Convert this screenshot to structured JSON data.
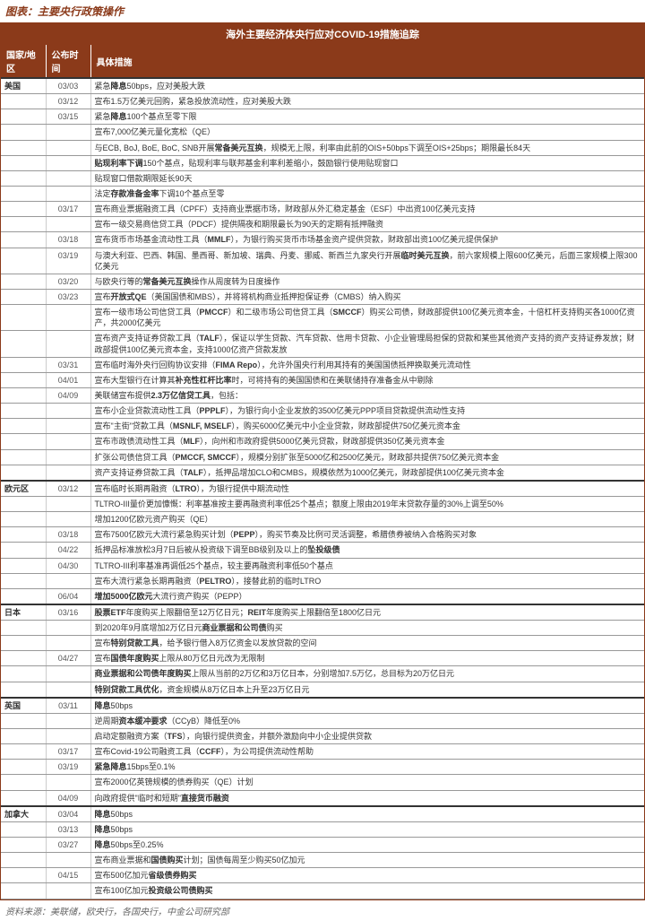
{
  "colors": {
    "primary": "#8b3a1a",
    "text": "#333333",
    "border": "#999999",
    "bg": "#ffffff"
  },
  "chart_title": "图表：主要央行政策操作",
  "table_title": "海外主要经济体央行应对COVID-19措施追踪",
  "columns": [
    "国家/地区",
    "公布时间",
    "具体措施"
  ],
  "rows": [
    {
      "region": "美国",
      "date": "03/03",
      "m": "紧急<b>降息</b>50bps，应对美股大跌",
      "sep": true
    },
    {
      "region": "",
      "date": "03/12",
      "m": "宣布1.5万亿美元回购，紧急投放流动性，应对美股大跌"
    },
    {
      "region": "",
      "date": "03/15",
      "m": "紧急<b>降息</b>100个基点至零下限"
    },
    {
      "region": "",
      "date": "",
      "m": "宣布7,000亿美元量化宽松（QE）"
    },
    {
      "region": "",
      "date": "",
      "m": "与ECB, BoJ, BoE, BoC, SNB开展<b>常备美元互换</b>，规模无上限，利率由此前的OIS+50bps下调至OIS+25bps；期限最长84天"
    },
    {
      "region": "",
      "date": "",
      "m": "<b>贴现利率下调</b>150个基点，贴现利率与联邦基金利率利差缩小，鼓励银行使用贴现窗口"
    },
    {
      "region": "",
      "date": "",
      "m": "贴现窗口借款期限延长90天"
    },
    {
      "region": "",
      "date": "",
      "m": "法定<b>存款准备金率</b>下调10个基点至零"
    },
    {
      "region": "",
      "date": "03/17",
      "m": "宣布商业票据融资工具（CPFF）支持商业票据市场，财政部从外汇稳定基金（ESF）中出资100亿美元支持"
    },
    {
      "region": "",
      "date": "",
      "m": "宣布一级交易商信贷工具（PDCF）提供隔夜和期限最长为90天的定期有抵押融资"
    },
    {
      "region": "",
      "date": "03/18",
      "m": "宣布货币市场基金流动性工具（<b>MMLF</b>），为银行购买货币市场基金资产提供贷款，财政部出资100亿美元提供保护"
    },
    {
      "region": "",
      "date": "03/19",
      "m": "与澳大利亚、巴西、韩国、墨西哥、新加坡、瑞典、丹麦、挪威、新西兰九家央行开展<b>临时美元互换</b>，前六家规模上限600亿美元，后面三家规模上限300亿美元"
    },
    {
      "region": "",
      "date": "03/20",
      "m": "与欧央行等的<b>常备美元互换</b>操作从周度转为日度操作"
    },
    {
      "region": "",
      "date": "03/23",
      "m": "宣布<b>开放式QE</b>（美国国债和MBS），并将将机构商业抵押担保证券（CMBS）纳入购买"
    },
    {
      "region": "",
      "date": "",
      "m": "宣布一级市场公司信贷工具（<b>PMCCF</b>）和二级市场公司信贷工具（<b>SMCCF</b>）购买公司债，财政部提供100亿美元资本金，十倍杠杆支持购买各1000亿资产，共2000亿美元"
    },
    {
      "region": "",
      "date": "",
      "m": "宣布资产支持证券贷款工具（<b>TALF</b>），保证以学生贷款、汽车贷款、信用卡贷款、小企业管理局担保的贷款和某些其他资产支持的资产支持证券发放；财政部提供100亿美元资本金，支持1000亿资产贷款发放"
    },
    {
      "region": "",
      "date": "03/31",
      "m": "宣布临时海外央行回购协议安排（<b>FIMA Repo</b>），允许外国央行利用其持有的美国国债抵押换取美元流动性"
    },
    {
      "region": "",
      "date": "04/01",
      "m": "宣布大型银行在计算其<b>补充性杠杆比率</b>时，可将持有的美国国债和在美联储持存准备金从中剔除"
    },
    {
      "region": "",
      "date": "04/09",
      "m": "美联储宣布提供<b>2.3万亿信贷工具</b>，包括："
    },
    {
      "region": "",
      "date": "",
      "m": "宣布小企业贷款流动性工具（<b>PPPLF</b>），为银行向小企业发放的3500亿美元PPP项目贷款提供流动性支持"
    },
    {
      "region": "",
      "date": "",
      "m": "宣布\"主街\"贷款工具（<b>MSNLF, MSELF</b>），购买6000亿美元中小企业贷款，财政部提供750亿美元资本金"
    },
    {
      "region": "",
      "date": "",
      "m": "宣布市政债流动性工具（<b>MLF</b>），向州和市政府提供5000亿美元贷款，财政部提供350亿美元资本金"
    },
    {
      "region": "",
      "date": "",
      "m": "扩张公司债信贷工具（<b>PMCCF, SMCCF</b>），规模分别扩张至5000亿和2500亿美元，财政部共提供750亿美元资本金"
    },
    {
      "region": "",
      "date": "",
      "m": "资产支持证券贷款工具（<b>TALF</b>），抵押品增加CLO和CMBS，规模依然为1000亿美元，财政部提供100亿美元资本金"
    },
    {
      "region": "欧元区",
      "date": "03/12",
      "m": "宣布临时长期再融资（<b>LTRO</b>），为银行提供中期流动性",
      "sep": true
    },
    {
      "region": "",
      "date": "",
      "m": "TLTRO-III量价更加慷慨：利率基准按主要再融资利率低25个基点；额度上限由2019年末贷款存量的30%上调至50%"
    },
    {
      "region": "",
      "date": "",
      "m": "增加1200亿欧元资产购买（QE）"
    },
    {
      "region": "",
      "date": "03/18",
      "m": "宣布7500亿欧元大流行紧急购买计划（<b>PEPP</b>），购买节奏及比例可灵活调整，希腊债券被纳入合格购买对象"
    },
    {
      "region": "",
      "date": "04/22",
      "m": "抵押品标准放松3月7日后被从投资级下调至BB级别及以上的<b>坠投级债</b>"
    },
    {
      "region": "",
      "date": "04/30",
      "m": "TLTRO-III利率基准再调低25个基点，较主要再融资利率低50个基点"
    },
    {
      "region": "",
      "date": "",
      "m": "宣布大流行紧急长期再融资（<b>PELTRO</b>），接替此前的临时LTRO"
    },
    {
      "region": "",
      "date": "06/04",
      "m": "<b>增加5000亿欧元</b>大流行资产购买（PEPP）"
    },
    {
      "region": "日本",
      "date": "03/16",
      "m": "<b>股票ETF</b>年度购买上限翻倍至12万亿日元；<b>REIT</b>年度购买上限翻倍至1800亿日元",
      "sep": true
    },
    {
      "region": "",
      "date": "",
      "m": "到2020年9月底增加2万亿日元<b>商业票据和公司债</b>购买"
    },
    {
      "region": "",
      "date": "",
      "m": "宣布<b>特别贷款工具</b>，给予银行借入8万亿资金以发放贷款的空间"
    },
    {
      "region": "",
      "date": "04/27",
      "m": "宣布<b>国债年度购买</b>上限从80万亿日元改为无限制"
    },
    {
      "region": "",
      "date": "",
      "m": "<b>商业票据和公司债年度购买</b>上限从当前的2万亿和3万亿日本，分别增加7.5万亿，总目标为20万亿日元"
    },
    {
      "region": "",
      "date": "",
      "m": "<b>特别贷款工具优化</b>，资金规模从8万亿日本上升至23万亿日元"
    },
    {
      "region": "英国",
      "date": "03/11",
      "m": "<b>降息</b>50bps",
      "sep": true
    },
    {
      "region": "",
      "date": "",
      "m": "逆周期<b>资本缓冲要求</b>（CCyB）降低至0%"
    },
    {
      "region": "",
      "date": "",
      "m": "启动定额融资方案（<b>TFS</b>），向银行提供资金，并额外激励向中小企业提供贷款"
    },
    {
      "region": "",
      "date": "03/17",
      "m": "宣布Covid-19公司融资工具（<b>CCFF</b>），为公司提供流动性帮助"
    },
    {
      "region": "",
      "date": "03/19",
      "m": "<b>紧急降息</b>15bps至0.1%"
    },
    {
      "region": "",
      "date": "",
      "m": "宣布2000亿英镑规模的债券购买（QE）计划"
    },
    {
      "region": "",
      "date": "04/09",
      "m": "向政府提供\"临时和短期\"<b>直接货币融资</b>"
    },
    {
      "region": "加拿大",
      "date": "03/04",
      "m": "<b>降息</b>50bps",
      "sep": true
    },
    {
      "region": "",
      "date": "03/13",
      "m": "<b>降息</b>50bps"
    },
    {
      "region": "",
      "date": "03/27",
      "m": "<b>降息</b>50bps至0.25%"
    },
    {
      "region": "",
      "date": "",
      "m": "宣布商业票据和<b>国债购买</b>计划；国债每周至少购买50亿加元"
    },
    {
      "region": "",
      "date": "04/15",
      "m": "宣布500亿加元<b>省级债券购买</b>"
    },
    {
      "region": "",
      "date": "",
      "m": "宣布100亿加元<b>投资级公司债购买</b>"
    }
  ],
  "source": "资料来源：美联储，欧央行，各国央行，中金公司研究部"
}
